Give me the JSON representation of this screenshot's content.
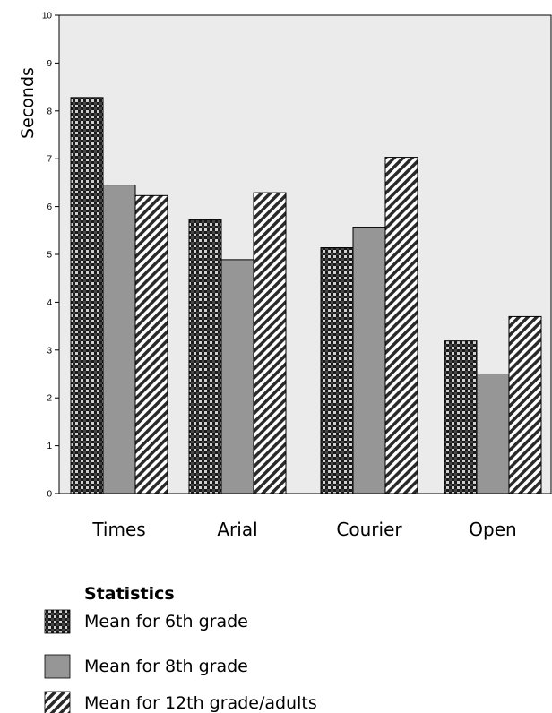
{
  "chart_data": {
    "type": "bar",
    "title": "",
    "xlabel": "",
    "ylabel": "Seconds",
    "ylim": [
      0,
      10
    ],
    "yticks": [
      0,
      1,
      2,
      3,
      4,
      5,
      6,
      7,
      8,
      9,
      10
    ],
    "grid": false,
    "categories": [
      "Times",
      "Arial",
      "Courier",
      "Open"
    ],
    "series": [
      {
        "name": "Mean for 6th grade",
        "values": [
          8.28,
          5.72,
          5.14,
          3.19
        ],
        "pattern": "checker",
        "color": "#2a2a2a"
      },
      {
        "name": "Mean for 8th grade",
        "values": [
          6.45,
          4.89,
          5.57,
          2.5
        ],
        "pattern": "solid",
        "color": "#969696"
      },
      {
        "name": "Mean for 12th grade/adults",
        "values": [
          6.23,
          6.29,
          7.03,
          3.7
        ],
        "pattern": "diagonal",
        "color": "#3c3c3c"
      }
    ],
    "plot_background": "#ebebeb",
    "legend": {
      "title": "Statistics",
      "placement": "bottom-left"
    }
  }
}
